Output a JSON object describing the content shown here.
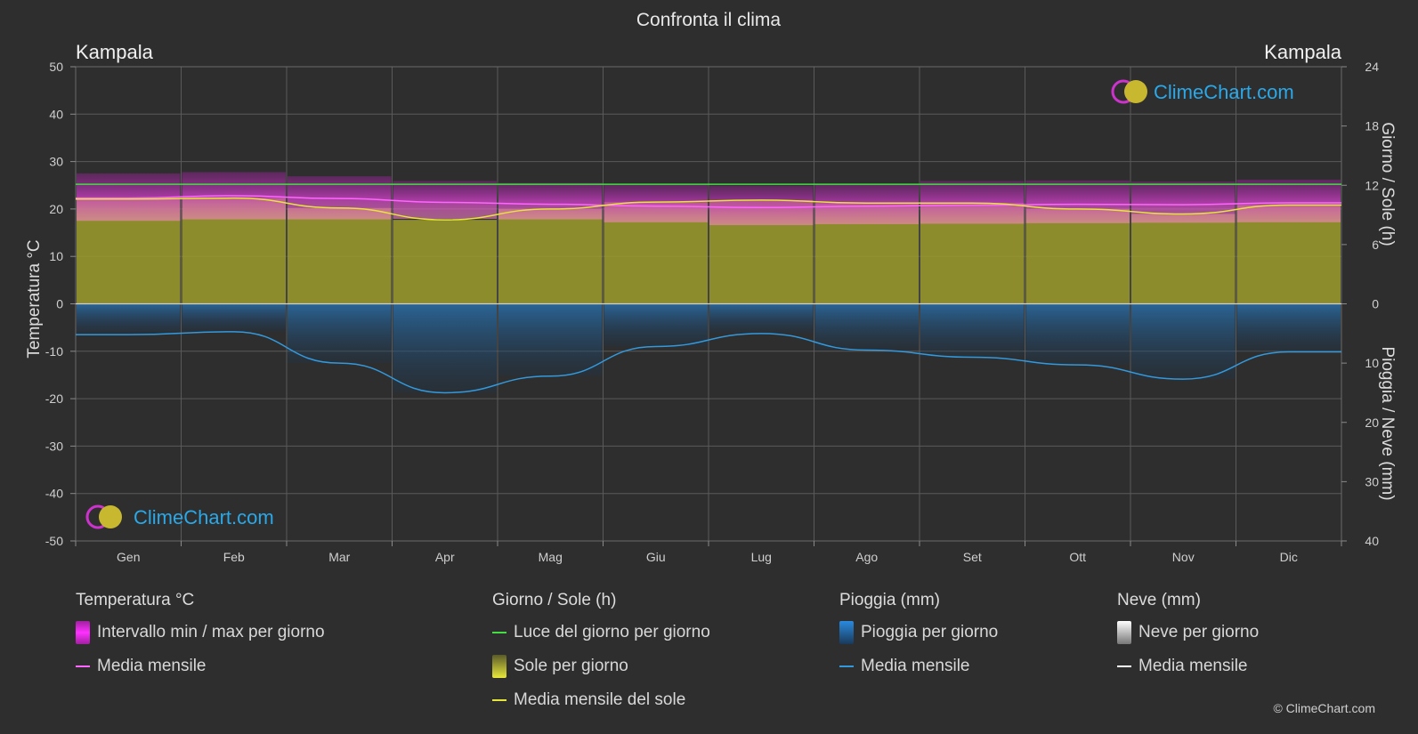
{
  "title": "Confronta il clima",
  "location_left": "Kampala",
  "location_right": "Kampala",
  "brand": "ClimeChart.com",
  "copyright": "© ClimeChart.com",
  "axes": {
    "left_label": "Temperatura °C",
    "right_top_label": "Giorno / Sole (h)",
    "right_bottom_label": "Pioggia / Neve (mm)",
    "left_ticks": [
      50,
      40,
      30,
      20,
      10,
      0,
      -10,
      -20,
      -30,
      -40,
      -50
    ],
    "right_top_ticks": [
      24,
      18,
      12,
      6,
      0
    ],
    "right_bottom_ticks": [
      10,
      20,
      30,
      40
    ]
  },
  "chart_data": {
    "type": "line",
    "title": "Confronta il clima",
    "categories": [
      "Gen",
      "Feb",
      "Mar",
      "Apr",
      "Mag",
      "Giu",
      "Lug",
      "Ago",
      "Set",
      "Ott",
      "Nov",
      "Dic"
    ],
    "ylim_temperature": [
      -50,
      50
    ],
    "ylim_sun_hours": [
      0,
      24
    ],
    "ylim_precip_mm": [
      0,
      40
    ],
    "grid": true,
    "series": [
      {
        "name": "Media mensile",
        "group": "Temperatura °C",
        "color": "#ff66ff",
        "values": [
          22.3,
          22.8,
          22.2,
          21.4,
          21.0,
          20.6,
          20.3,
          20.6,
          20.8,
          21.0,
          20.9,
          21.3
        ]
      },
      {
        "name": "Intervallo min / max per giorno",
        "group": "Temperatura °C",
        "color": "#e040e0",
        "min": [
          17.5,
          17.8,
          17.8,
          17.9,
          17.8,
          17.2,
          16.6,
          16.8,
          16.9,
          17.0,
          17.1,
          17.2
        ],
        "max": [
          27.5,
          27.8,
          26.9,
          25.9,
          25.5,
          25.1,
          24.9,
          25.3,
          25.9,
          26.0,
          25.8,
          26.2
        ]
      },
      {
        "name": "Luce del giorno per giorno",
        "group": "Giorno / Sole (h)",
        "color": "#44dd44",
        "values": [
          12.1,
          12.1,
          12.1,
          12.1,
          12.1,
          12.1,
          12.1,
          12.1,
          12.1,
          12.1,
          12.1,
          12.1
        ]
      },
      {
        "name": "Media mensile del sole",
        "group": "Giorno / Sole (h)",
        "color": "#e6e63a",
        "values": [
          10.6,
          10.7,
          9.7,
          8.5,
          9.6,
          10.3,
          10.5,
          10.2,
          10.2,
          9.6,
          9.1,
          10.0
        ]
      },
      {
        "name": "Media mensile",
        "group": "Pioggia (mm)",
        "color": "#3399dd",
        "values": [
          5.2,
          4.7,
          10.0,
          15.0,
          12.2,
          7.2,
          5.0,
          7.8,
          9.0,
          10.3,
          12.7,
          8.1
        ]
      },
      {
        "name": "Media mensile",
        "group": "Neve (mm)",
        "color": "#ffffff",
        "values": [
          0,
          0,
          0,
          0,
          0,
          0,
          0,
          0,
          0,
          0,
          0,
          0
        ]
      }
    ]
  },
  "legend": {
    "groups": [
      {
        "title": "Temperatura °C",
        "items": [
          {
            "label": "Intervallo min / max per giorno",
            "swatch": "box",
            "color": "#e020e0"
          },
          {
            "label": "Media mensile",
            "swatch": "line",
            "color": "#ff66ff"
          }
        ]
      },
      {
        "title": "Giorno / Sole (h)",
        "items": [
          {
            "label": "Luce del giorno per giorno",
            "swatch": "line",
            "color": "#44dd44"
          },
          {
            "label": "Sole per giorno",
            "swatch": "box",
            "color": "#d6d630"
          },
          {
            "label": "Media mensile del sole",
            "swatch": "line",
            "color": "#e6e63a"
          }
        ]
      },
      {
        "title": "Pioggia (mm)",
        "items": [
          {
            "label": "Pioggia per giorno",
            "swatch": "box",
            "color": "#2d7fc9"
          },
          {
            "label": "Media mensile",
            "swatch": "line",
            "color": "#3399dd"
          }
        ]
      },
      {
        "title": "Neve (mm)",
        "items": [
          {
            "label": "Neve per giorno",
            "swatch": "box",
            "color": "#dddddd"
          },
          {
            "label": "Media mensile",
            "swatch": "line",
            "color": "#ffffff"
          }
        ]
      }
    ]
  }
}
